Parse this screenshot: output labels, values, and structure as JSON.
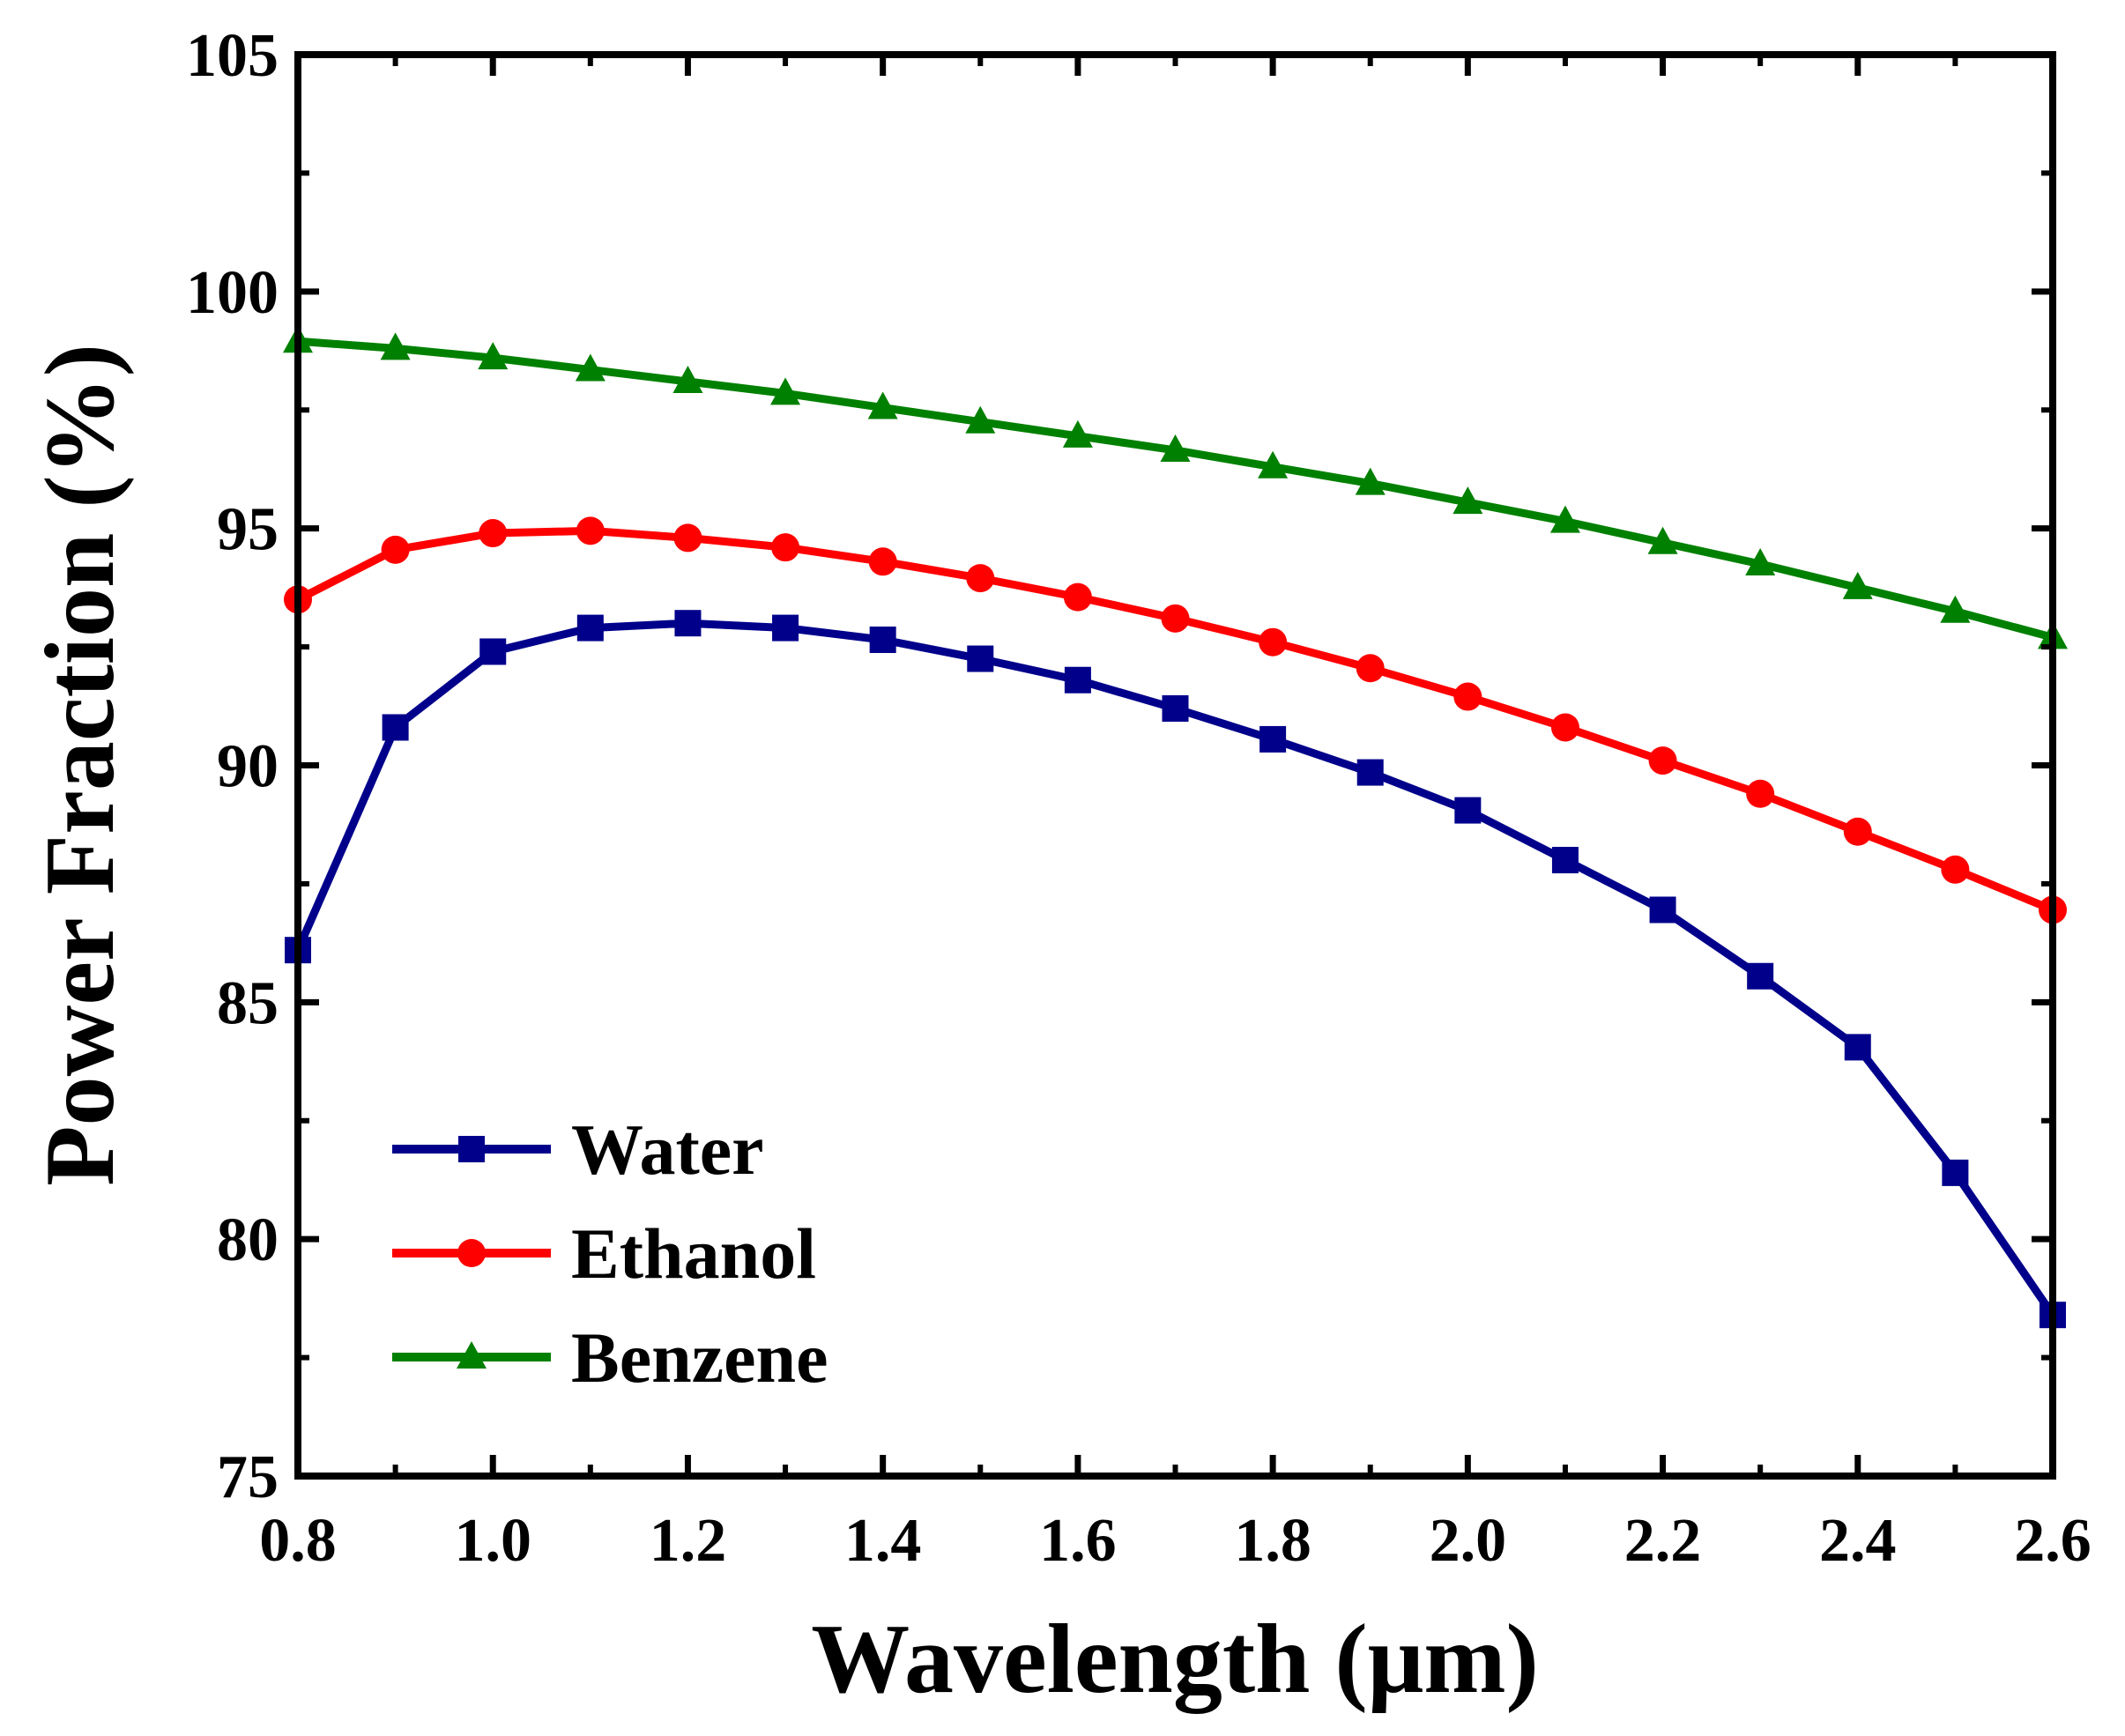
{
  "chart_data": {
    "type": "line",
    "title": "",
    "xlabel": "Wavelength (μm)",
    "ylabel": "Power Fraction (%)",
    "xlim": [
      0.8,
      2.6
    ],
    "ylim": [
      75,
      105
    ],
    "xticks": [
      0.8,
      1.0,
      1.2,
      1.4,
      1.6,
      1.8,
      2.0,
      2.2,
      2.4,
      2.6
    ],
    "xtick_labels": [
      "0.8",
      "1.0",
      "1.2",
      "1.4",
      "1.6",
      "1.8",
      "2.0",
      "2.2",
      "2.4",
      "2.6"
    ],
    "yticks": [
      75,
      80,
      85,
      90,
      95,
      100,
      105
    ],
    "ytick_labels": [
      "75",
      "80",
      "85",
      "90",
      "95",
      "100",
      "105"
    ],
    "grid": false,
    "legend_position": "bottom-left",
    "x": [
      0.8,
      0.9,
      1.0,
      1.1,
      1.2,
      1.3,
      1.4,
      1.5,
      1.6,
      1.7,
      1.8,
      1.9,
      2.0,
      2.1,
      2.2,
      2.3,
      2.4,
      2.5,
      2.6
    ],
    "series": [
      {
        "name": "Water",
        "color": "#00008b",
        "marker": "square",
        "values": [
          86.1,
          90.8,
          92.4,
          92.9,
          93.0,
          92.9,
          92.65,
          92.25,
          91.8,
          91.2,
          90.55,
          89.85,
          89.05,
          88.0,
          86.95,
          85.55,
          84.05,
          81.4,
          78.4
        ]
      },
      {
        "name": "Ethanol",
        "color": "#ff0000",
        "marker": "circle",
        "values": [
          93.5,
          94.55,
          94.9,
          94.95,
          94.8,
          94.6,
          94.3,
          93.95,
          93.55,
          93.1,
          92.6,
          92.05,
          91.45,
          90.8,
          90.1,
          89.4,
          88.6,
          87.8,
          86.95
        ]
      },
      {
        "name": "Benzene",
        "color": "#008000",
        "marker": "triangle",
        "values": [
          98.95,
          98.8,
          98.6,
          98.35,
          98.1,
          97.85,
          97.55,
          97.25,
          96.95,
          96.65,
          96.3,
          95.95,
          95.55,
          95.15,
          94.7,
          94.25,
          93.75,
          93.25,
          92.7
        ]
      }
    ]
  }
}
